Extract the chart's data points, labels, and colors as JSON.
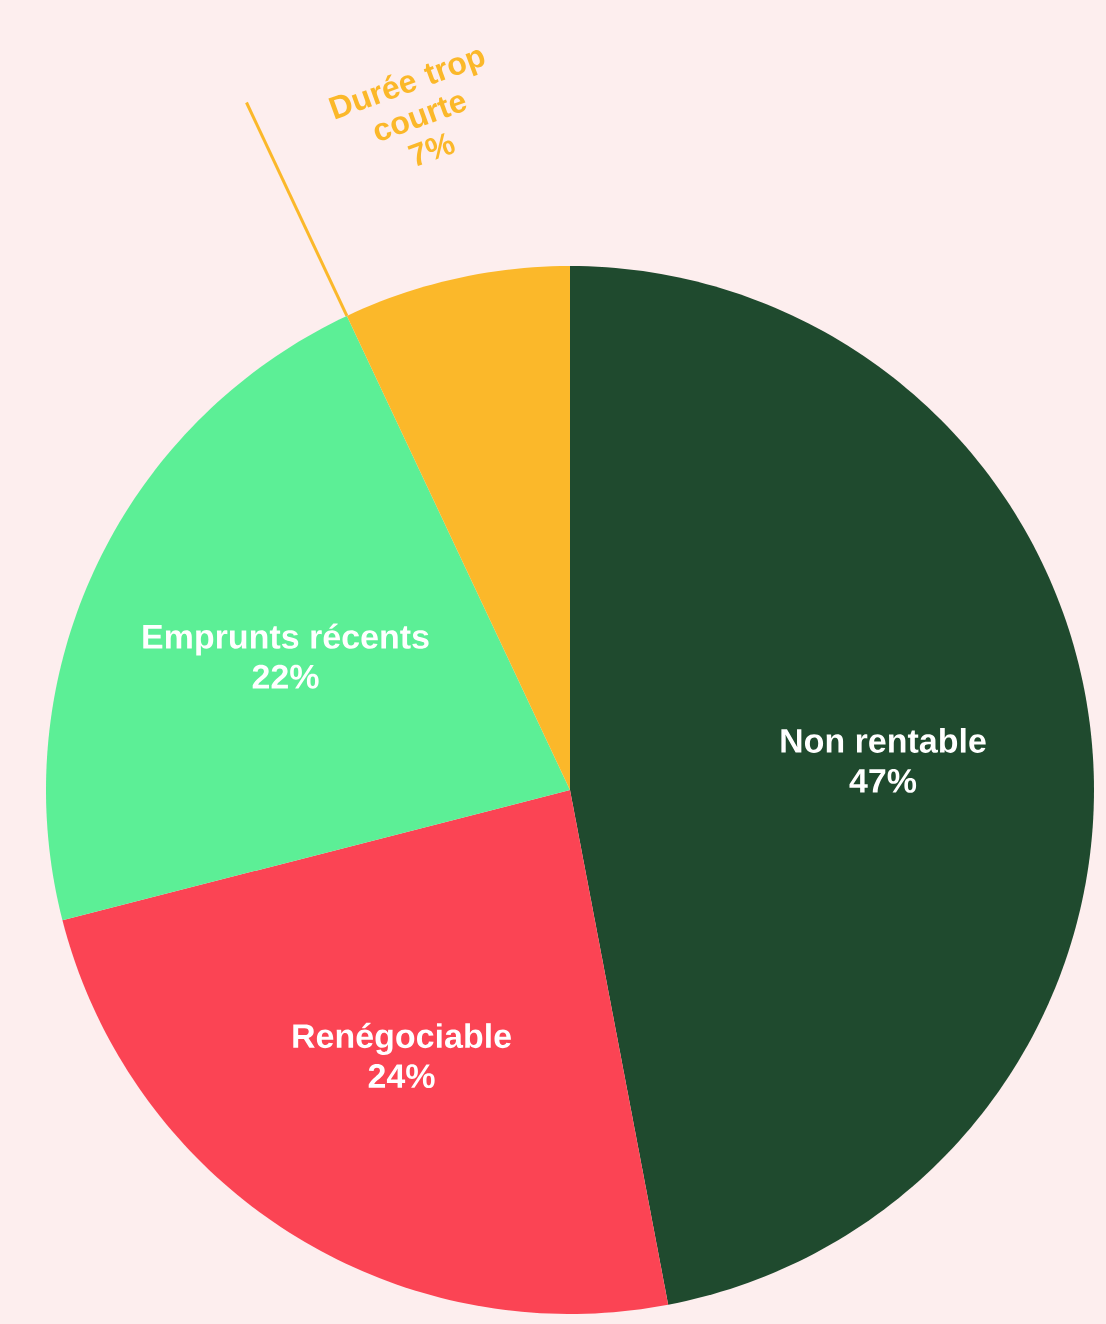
{
  "chart_data": {
    "type": "pie",
    "categories": [
      "Non rentable",
      "Renégociable",
      "Emprunts récents",
      "Durée trop courte"
    ],
    "values": [
      47,
      24,
      22,
      7
    ],
    "value_labels": [
      "47%",
      "24%",
      "22%",
      "7%"
    ],
    "colors": [
      "#1f4a2e",
      "#fb4454",
      "#5cef96",
      "#fbb82a"
    ]
  }
}
